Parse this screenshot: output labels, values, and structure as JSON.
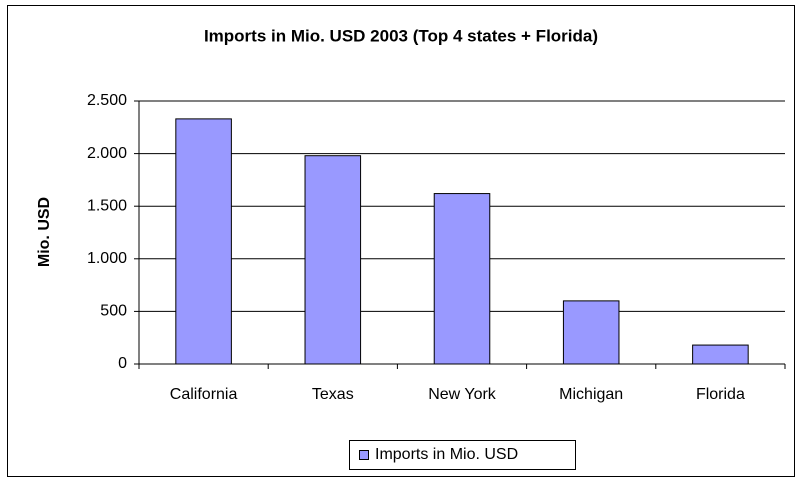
{
  "chart_data": {
    "type": "bar",
    "title": "Imports in Mio. USD 2003 (Top 4 states + Florida)",
    "y_axis_label": "Mio. USD",
    "categories": [
      "California",
      "Texas",
      "New York",
      "Michigan",
      "Florida"
    ],
    "series": [
      {
        "name": "Imports in Mio. USD",
        "color": "#9999ff",
        "values": [
          2330,
          1980,
          1620,
          600,
          180
        ]
      }
    ],
    "ylim": [
      0,
      2500
    ],
    "yticks": [
      0,
      500,
      {
        "value": 1000,
        "label": "1.000"
      },
      {
        "value": 1500,
        "label": "1.500"
      },
      {
        "value": 2000,
        "label": "2.000"
      },
      {
        "value": 2500,
        "label": "2.500"
      }
    ],
    "grid": true,
    "legend": "bottom"
  }
}
